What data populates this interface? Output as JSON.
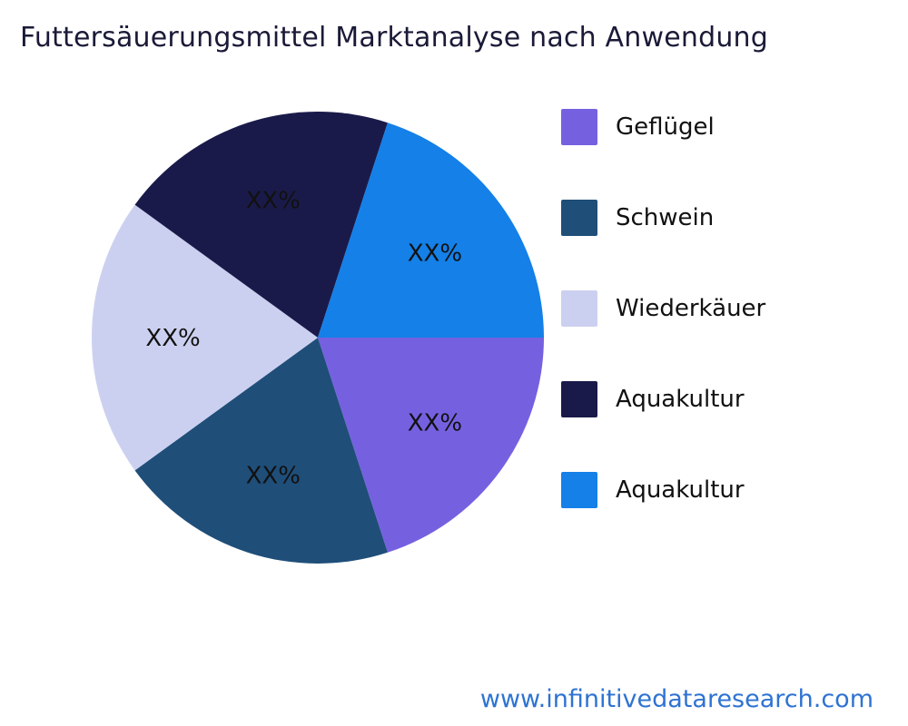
{
  "title": "Futtersäuerungsmittel Marktanalyse nach Anwendung",
  "website": "www.infinitivedataresearch.com",
  "chart_data": {
    "type": "pie",
    "title": "Futtersäuerungsmittel Marktanalyse nach Anwendung",
    "categories": [
      "Geflügel",
      "Schwein",
      "Wiederkäuer",
      "Aquakultur",
      "Aquakultur"
    ],
    "values": [
      20,
      20,
      20,
      20,
      20
    ],
    "value_labels": [
      "XX%",
      "XX%",
      "XX%",
      "XX%",
      "XX%"
    ],
    "colors": [
      "#7561e0",
      "#1f4e79",
      "#ccd0f0",
      "#1a1a4a",
      "#1480e8"
    ],
    "start_angle_deg": 0,
    "direction": "clockwise",
    "legend_position": "right",
    "label_color": "#111111"
  },
  "style": {
    "background": "#ffffff",
    "title_color": "#1a1a38",
    "website_color": "#2e73d2"
  }
}
